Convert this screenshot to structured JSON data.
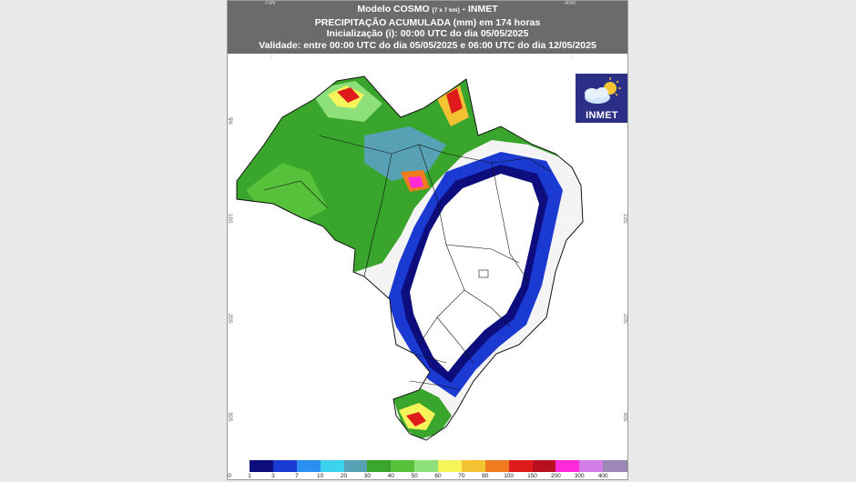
{
  "header": {
    "model_prefix": "Modelo COSMO ",
    "model_resolution": "[7 x 7 km]",
    "model_suffix": " - INMET",
    "title": "PRECIPITAÇÃO ACUMULADA (mm) em 174 horas",
    "init": "Inicialização (i): 00:00 UTC do dia 05/05/2025",
    "validity": "Validade: entre 00:00 UTC do dia 05/05/2025 e 06:00 UTC do dia 12/05/2025"
  },
  "axes": {
    "lon_labels": [
      "70W",
      "40W"
    ],
    "lat_labels": [
      "5N",
      "10S",
      "20S",
      "30S"
    ]
  },
  "logo": {
    "text": "INMET",
    "icon": "weather-cloud-sun-icon"
  },
  "legend": {
    "labels": [
      "0",
      "1",
      "3",
      "7",
      "10",
      "20",
      "30",
      "40",
      "50",
      "60",
      "70",
      "80",
      "100",
      "150",
      "200",
      "300",
      "400"
    ],
    "colors": [
      "#ffffff",
      "#0d0d7d",
      "#1a3ad1",
      "#2a8ff0",
      "#3bd3f0",
      "#58a1b5",
      "#3aa52c",
      "#57c13c",
      "#8ee07a",
      "#f7f45a",
      "#f3c232",
      "#f07b1f",
      "#e01b1b",
      "#b8101e",
      "#ff2ad7",
      "#d37ee8",
      "#9c87b8",
      "#888888"
    ]
  }
}
